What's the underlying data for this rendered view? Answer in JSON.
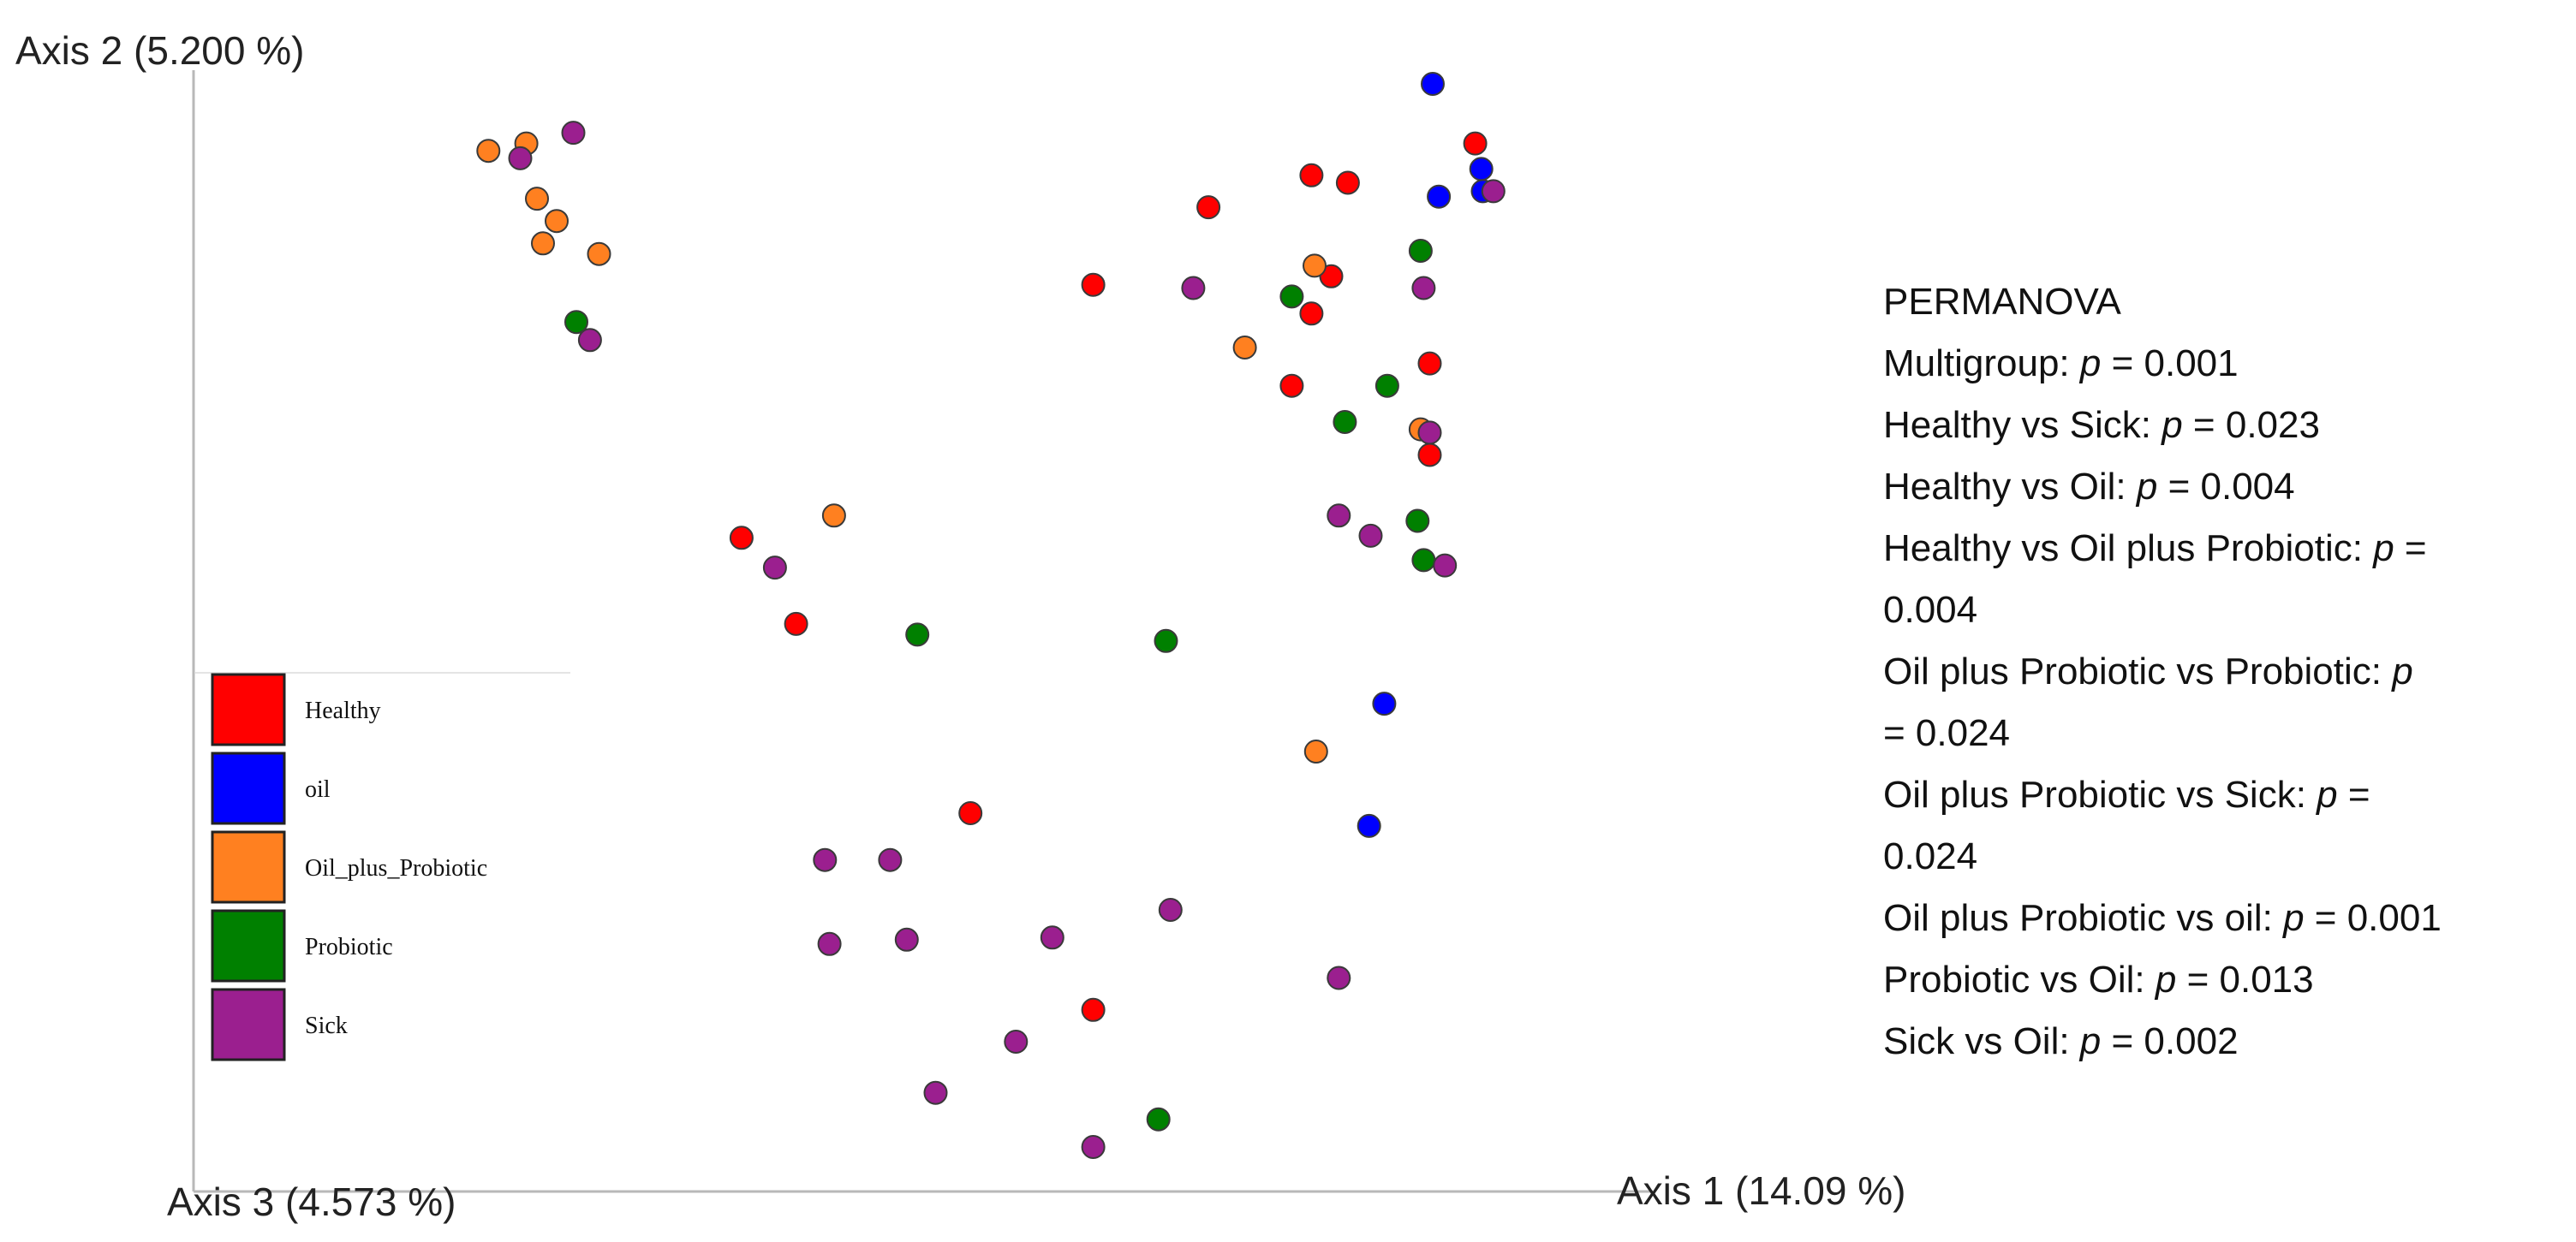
{
  "chart_data": {
    "type": "scatter",
    "projection": "3D PCoA",
    "axes": {
      "axis1": "Axis 1 (14.09 %)",
      "axis2": "Axis 2 (5.200 %)",
      "axis3": "Axis 3 (4.573 %)"
    },
    "legend": {
      "placement": "bottom-left",
      "entries": [
        {
          "key": "Healthy",
          "label": "Healthy",
          "color": "#ff0000"
        },
        {
          "key": "oil",
          "label": "oil",
          "color": "#0000ff"
        },
        {
          "key": "Oil_plus_Probiotic",
          "label": "Oil_plus_Probiotic",
          "color": "#ff8020"
        },
        {
          "key": "Probiotic",
          "label": "Probiotic",
          "color": "#008000"
        },
        {
          "key": "Sick",
          "label": "Sick",
          "color": "#9b1f8f"
        }
      ]
    },
    "series": [
      {
        "name": "Healthy",
        "color": "#ff0000",
        "points": [
          {
            "x": 0.528,
            "y": 0.811
          },
          {
            "x": 0.604,
            "y": 0.884
          },
          {
            "x": 0.672,
            "y": 0.914
          },
          {
            "x": 0.696,
            "y": 0.907
          },
          {
            "x": 0.685,
            "y": 0.819
          },
          {
            "x": 0.672,
            "y": 0.784
          },
          {
            "x": 0.659,
            "y": 0.716
          },
          {
            "x": 0.75,
            "y": 0.737
          },
          {
            "x": 0.75,
            "y": 0.651
          },
          {
            "x": 0.78,
            "y": 0.944
          },
          {
            "x": 0.296,
            "y": 0.573
          },
          {
            "x": 0.332,
            "y": 0.492
          },
          {
            "x": 0.447,
            "y": 0.314
          },
          {
            "x": 0.528,
            "y": 0.129
          }
        ]
      },
      {
        "name": "oil",
        "color": "#0000ff",
        "points": [
          {
            "x": 0.752,
            "y": 1.0
          },
          {
            "x": 0.784,
            "y": 0.92
          },
          {
            "x": 0.785,
            "y": 0.899
          },
          {
            "x": 0.756,
            "y": 0.894
          },
          {
            "x": 0.72,
            "y": 0.417
          },
          {
            "x": 0.71,
            "y": 0.302
          }
        ]
      },
      {
        "name": "Oil_plus_Probiotic",
        "color": "#ff8020",
        "points": [
          {
            "x": 0.129,
            "y": 0.937
          },
          {
            "x": 0.154,
            "y": 0.944
          },
          {
            "x": 0.161,
            "y": 0.892
          },
          {
            "x": 0.174,
            "y": 0.871
          },
          {
            "x": 0.165,
            "y": 0.85
          },
          {
            "x": 0.202,
            "y": 0.84
          },
          {
            "x": 0.674,
            "y": 0.829
          },
          {
            "x": 0.628,
            "y": 0.752
          },
          {
            "x": 0.744,
            "y": 0.675
          },
          {
            "x": 0.357,
            "y": 0.594
          },
          {
            "x": 0.675,
            "y": 0.372
          }
        ]
      },
      {
        "name": "Probiotic",
        "color": "#008000",
        "points": [
          {
            "x": 0.187,
            "y": 0.776
          },
          {
            "x": 0.744,
            "y": 0.843
          },
          {
            "x": 0.659,
            "y": 0.8
          },
          {
            "x": 0.722,
            "y": 0.716
          },
          {
            "x": 0.694,
            "y": 0.682
          },
          {
            "x": 0.742,
            "y": 0.589
          },
          {
            "x": 0.746,
            "y": 0.552
          },
          {
            "x": 0.412,
            "y": 0.482
          },
          {
            "x": 0.576,
            "y": 0.476
          },
          {
            "x": 0.571,
            "y": 0.026
          }
        ]
      },
      {
        "name": "Sick",
        "color": "#9b1f8f",
        "points": [
          {
            "x": 0.15,
            "y": 0.93
          },
          {
            "x": 0.185,
            "y": 0.954
          },
          {
            "x": 0.196,
            "y": 0.759
          },
          {
            "x": 0.594,
            "y": 0.808
          },
          {
            "x": 0.746,
            "y": 0.808
          },
          {
            "x": 0.75,
            "y": 0.672
          },
          {
            "x": 0.792,
            "y": 0.899
          },
          {
            "x": 0.69,
            "y": 0.594
          },
          {
            "x": 0.711,
            "y": 0.575
          },
          {
            "x": 0.76,
            "y": 0.547
          },
          {
            "x": 0.318,
            "y": 0.545
          },
          {
            "x": 0.351,
            "y": 0.27
          },
          {
            "x": 0.394,
            "y": 0.27
          },
          {
            "x": 0.354,
            "y": 0.191
          },
          {
            "x": 0.405,
            "y": 0.195
          },
          {
            "x": 0.501,
            "y": 0.197
          },
          {
            "x": 0.579,
            "y": 0.223
          },
          {
            "x": 0.69,
            "y": 0.159
          },
          {
            "x": 0.477,
            "y": 0.099
          },
          {
            "x": 0.424,
            "y": 0.051
          },
          {
            "x": 0.528,
            "y": 0.0
          }
        ]
      }
    ],
    "annotation": {
      "title": "PERMANOVA",
      "lines": [
        [
          {
            "t": "Multigroup: "
          },
          {
            "t": "p",
            "i": true
          },
          {
            "t": " = 0.001"
          }
        ],
        [
          {
            "t": "Healthy vs Sick: "
          },
          {
            "t": "p",
            "i": true
          },
          {
            "t": " = 0.023"
          }
        ],
        [
          {
            "t": "Healthy vs Oil: "
          },
          {
            "t": "p",
            "i": true
          },
          {
            "t": " = 0.004"
          }
        ],
        [
          {
            "t": "Healthy vs Oil plus Probiotic: "
          },
          {
            "t": "p",
            "i": true
          },
          {
            "t": " ="
          }
        ],
        [
          {
            "t": "0.004"
          }
        ],
        [
          {
            "t": "Oil plus Probiotic vs Probiotic: "
          },
          {
            "t": "p",
            "i": true
          }
        ],
        [
          {
            "t": "= 0.024"
          }
        ],
        [
          {
            "t": "Oil plus Probiotic vs Sick: "
          },
          {
            "t": "p",
            "i": true
          },
          {
            "t": " ="
          }
        ],
        [
          {
            "t": "0.024"
          }
        ],
        [
          {
            "t": "Oil plus Probiotic vs oil: "
          },
          {
            "t": "p",
            "i": true
          },
          {
            "t": " = 0.001"
          }
        ],
        [
          {
            "t": "Probiotic vs Oil: "
          },
          {
            "t": "p",
            "i": true
          },
          {
            "t": " = 0.013"
          }
        ],
        [
          {
            "t": "Sick vs Oil: "
          },
          {
            "t": "p",
            "i": true
          },
          {
            "t": " = 0.002"
          }
        ]
      ]
    }
  }
}
